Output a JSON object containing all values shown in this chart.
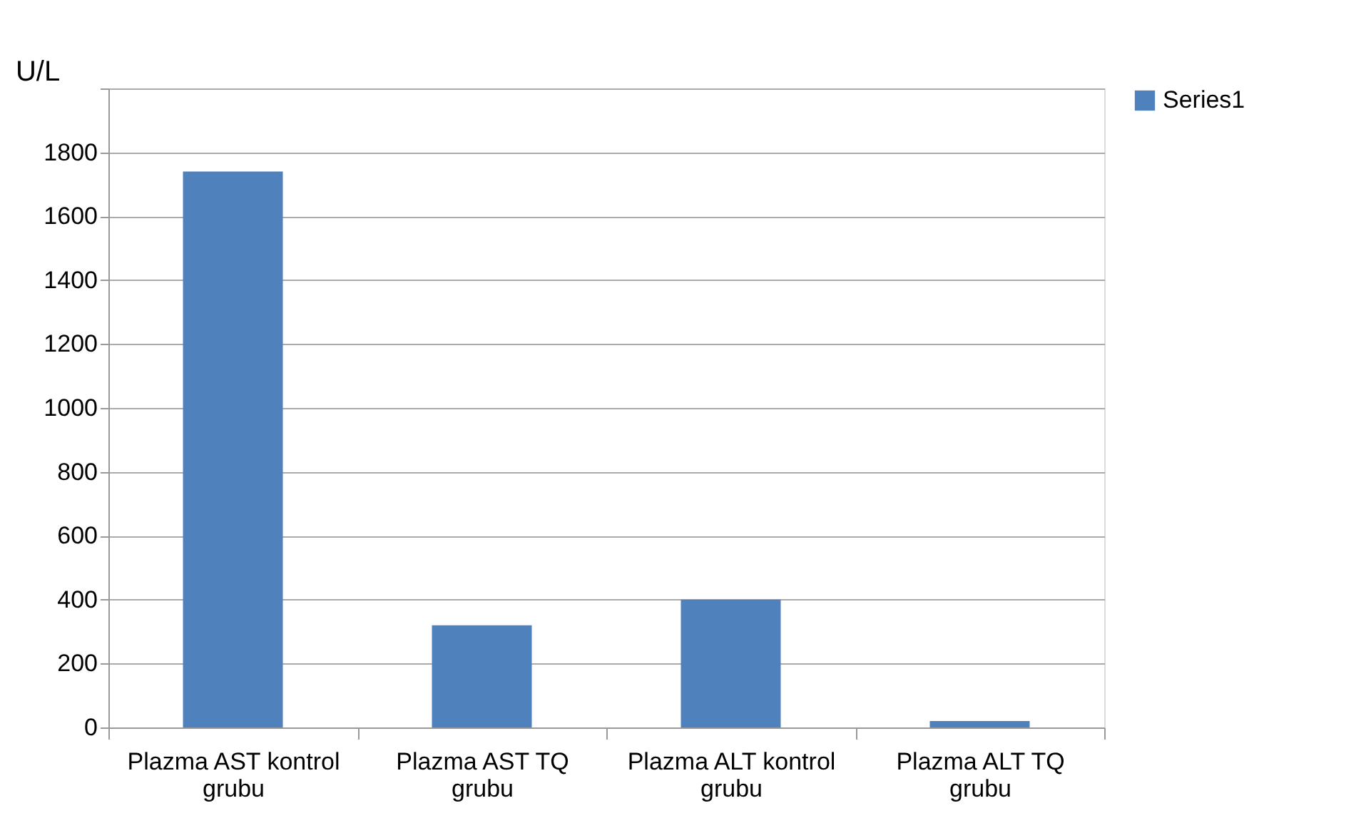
{
  "chart_data": {
    "type": "bar",
    "ylabel": "U/L",
    "categories": [
      "Plazma AST kontrol grubu",
      "Plazma AST TQ grubu",
      "Plazma ALT kontrol grubu",
      "Plazma ALT TQ grubu"
    ],
    "series": [
      {
        "name": "Series1",
        "color": "#4f81bd",
        "values": [
          1740,
          320,
          400,
          20
        ]
      }
    ],
    "ylim": [
      0,
      2000
    ],
    "yticks": [
      0,
      200,
      400,
      600,
      800,
      1000,
      1200,
      1400,
      1600,
      1800,
      {
        "value": 2000,
        "label": null
      }
    ],
    "grid": "y",
    "legend": "right"
  }
}
